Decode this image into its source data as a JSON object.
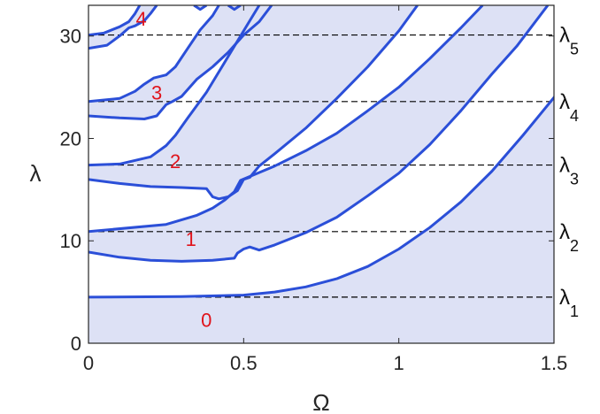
{
  "chart_data": {
    "type": "area",
    "xlabel": "Ω",
    "ylabel": "λ",
    "xlim": [
      0,
      1.5
    ],
    "ylim": [
      0,
      33
    ],
    "xticks": [
      {
        "value": 0,
        "label": "0"
      },
      {
        "value": 0.5,
        "label": "0.5"
      },
      {
        "value": 1,
        "label": "1"
      },
      {
        "value": 1.5,
        "label": "1.5"
      }
    ],
    "yticks": [
      {
        "value": 0,
        "label": "0"
      },
      {
        "value": 10,
        "label": "10"
      },
      {
        "value": 20,
        "label": "20"
      },
      {
        "value": 30,
        "label": "30"
      }
    ],
    "colors": {
      "boundary": "#2b4fd8",
      "band_fill": "#dde1f5",
      "region_labels": "#e0131b",
      "reference_lines": "#000000",
      "axes": "#262626"
    },
    "reference_levels": [
      {
        "name": "λ",
        "sub": "1",
        "y": 4.5
      },
      {
        "name": "λ",
        "sub": "2",
        "y": 10.9
      },
      {
        "name": "λ",
        "sub": "3",
        "y": 17.4
      },
      {
        "name": "λ",
        "sub": "4",
        "y": 23.6
      },
      {
        "name": "λ",
        "sub": "5",
        "y": 30.1
      }
    ],
    "region_labels": [
      {
        "text": "0",
        "x": 0.38,
        "y": 2.3
      },
      {
        "text": "1",
        "x": 0.33,
        "y": 10.2
      },
      {
        "text": "2",
        "x": 0.28,
        "y": 17.8
      },
      {
        "text": "3",
        "x": 0.22,
        "y": 24.5
      },
      {
        "text": "4",
        "x": 0.17,
        "y": 31.7
      }
    ],
    "bands": [
      {
        "name": "0",
        "upper": [
          [
            0,
            4.5
          ],
          [
            0.3,
            4.55
          ],
          [
            0.5,
            4.7
          ],
          [
            0.6,
            5.0
          ],
          [
            0.7,
            5.5
          ],
          [
            0.8,
            6.3
          ],
          [
            0.9,
            7.5
          ],
          [
            1.0,
            9.2
          ],
          [
            1.1,
            11.3
          ],
          [
            1.2,
            13.8
          ],
          [
            1.3,
            16.8
          ],
          [
            1.4,
            20.3
          ],
          [
            1.5,
            24.0
          ],
          [
            1.56,
            26.6
          ]
        ],
        "lower": null
      },
      {
        "name": "1",
        "upper": [
          [
            0,
            10.9
          ],
          [
            0.25,
            11.6
          ],
          [
            0.35,
            12.5
          ],
          [
            0.4,
            13.2
          ],
          [
            0.44,
            14.0
          ],
          [
            0.47,
            14.8
          ],
          [
            0.49,
            15.9
          ],
          [
            0.6,
            17.3
          ],
          [
            0.7,
            18.8
          ],
          [
            0.8,
            20.5
          ],
          [
            0.9,
            22.7
          ],
          [
            1.0,
            25.0
          ],
          [
            1.1,
            27.8
          ],
          [
            1.2,
            30.8
          ],
          [
            1.27,
            33.0
          ]
        ],
        "lower": [
          [
            0,
            8.9
          ],
          [
            0.1,
            8.4
          ],
          [
            0.2,
            8.1
          ],
          [
            0.3,
            8.0
          ],
          [
            0.4,
            8.1
          ],
          [
            0.47,
            8.3
          ],
          [
            0.48,
            8.8
          ],
          [
            0.5,
            9.2
          ],
          [
            0.52,
            9.4
          ],
          [
            0.55,
            9.1
          ],
          [
            0.6,
            9.6
          ],
          [
            0.7,
            10.8
          ],
          [
            0.8,
            12.3
          ],
          [
            0.9,
            14.4
          ],
          [
            1.0,
            16.6
          ],
          [
            1.1,
            19.4
          ],
          [
            1.2,
            22.7
          ],
          [
            1.3,
            26.3
          ],
          [
            1.38,
            29.0
          ],
          [
            1.48,
            33.0
          ]
        ]
      },
      {
        "name": "2",
        "upper": [
          [
            0,
            17.4
          ],
          [
            0.1,
            17.5
          ],
          [
            0.2,
            18.2
          ],
          [
            0.25,
            19.3
          ],
          [
            0.28,
            20.3
          ],
          [
            0.32,
            22.0
          ],
          [
            0.38,
            24.5
          ],
          [
            0.43,
            27.0
          ],
          [
            0.48,
            29.5
          ],
          [
            0.52,
            31.5
          ],
          [
            0.55,
            33.0
          ]
        ],
        "lower": [
          [
            0,
            16.0
          ],
          [
            0.1,
            15.6
          ],
          [
            0.2,
            15.3
          ],
          [
            0.3,
            15.2
          ],
          [
            0.38,
            15.1
          ],
          [
            0.4,
            14.3
          ],
          [
            0.42,
            14.1
          ],
          [
            0.45,
            14.3
          ],
          [
            0.48,
            14.9
          ],
          [
            0.5,
            16.0
          ],
          [
            0.52,
            16.2
          ],
          [
            0.55,
            17.3
          ],
          [
            0.6,
            18.5
          ],
          [
            0.7,
            21.0
          ],
          [
            0.8,
            23.9
          ],
          [
            0.9,
            27.0
          ],
          [
            1.0,
            30.5
          ],
          [
            1.06,
            33.0
          ]
        ]
      },
      {
        "name": "3",
        "upper": [
          [
            0,
            23.6
          ],
          [
            0.1,
            23.9
          ],
          [
            0.15,
            24.6
          ],
          [
            0.18,
            25.3
          ],
          [
            0.21,
            25.9
          ],
          [
            0.25,
            26.2
          ],
          [
            0.28,
            27.0
          ],
          [
            0.32,
            28.8
          ],
          [
            0.36,
            30.6
          ],
          [
            0.4,
            32.0
          ],
          [
            0.42,
            33.0
          ]
        ],
        "lower": [
          [
            0,
            22.2
          ],
          [
            0.1,
            22.0
          ],
          [
            0.18,
            21.9
          ],
          [
            0.22,
            22.2
          ],
          [
            0.25,
            23.3
          ],
          [
            0.27,
            23.6
          ],
          [
            0.3,
            24.1
          ],
          [
            0.35,
            25.8
          ],
          [
            0.4,
            27.0
          ],
          [
            0.45,
            28.4
          ],
          [
            0.5,
            30.1
          ],
          [
            0.55,
            31.4
          ],
          [
            0.59,
            33.0
          ]
        ]
      },
      {
        "name": "4",
        "upper": [
          [
            0,
            30.1
          ],
          [
            0.05,
            30.3
          ],
          [
            0.1,
            30.9
          ],
          [
            0.13,
            31.4
          ],
          [
            0.15,
            32.2
          ],
          [
            0.165,
            33.0
          ]
        ],
        "lower": [
          [
            0,
            28.8
          ],
          [
            0.06,
            29.1
          ],
          [
            0.1,
            30.0
          ],
          [
            0.13,
            30.8
          ],
          [
            0.15,
            31.0
          ],
          [
            0.18,
            31.5
          ],
          [
            0.2,
            32.2
          ],
          [
            0.22,
            33.0
          ]
        ]
      },
      {
        "name": "5",
        "upper": [
          [
            0.34,
            33.0
          ],
          [
            0.36,
            32.6
          ],
          [
            0.38,
            33.0
          ]
        ],
        "lower": [
          [
            0.45,
            33.0
          ],
          [
            0.47,
            32.6
          ],
          [
            0.49,
            33.0
          ]
        ]
      }
    ]
  }
}
